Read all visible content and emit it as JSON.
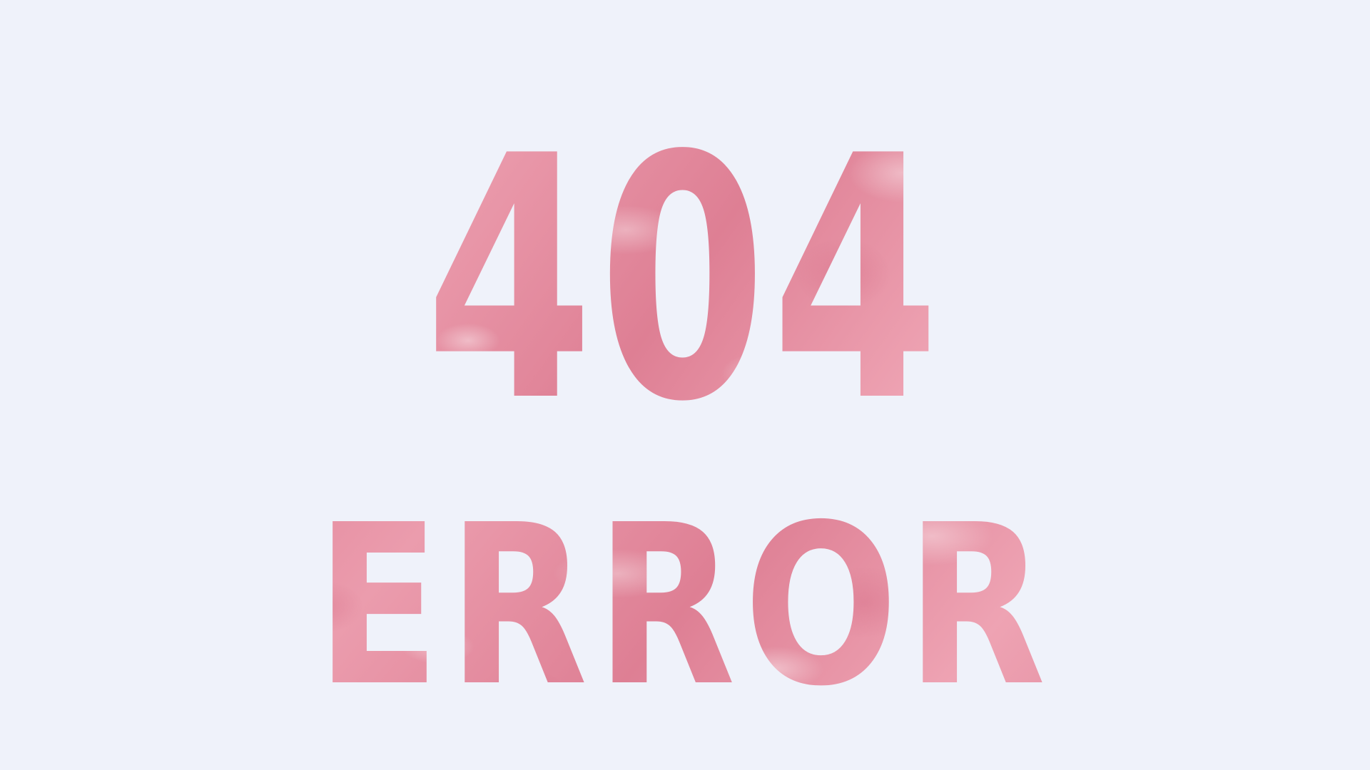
{
  "error": {
    "code": "404",
    "label": "ERROR"
  },
  "colors": {
    "background": "#eff2fa",
    "text_pink": "#e48a9d"
  }
}
